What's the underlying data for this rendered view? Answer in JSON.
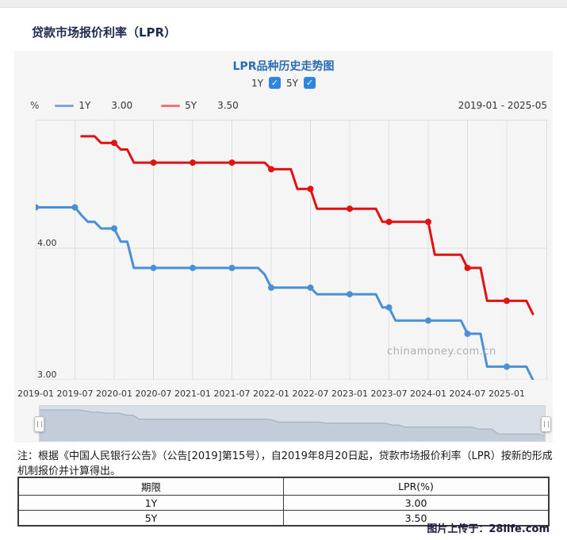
{
  "header": {
    "title": "贷款市场报价利率（LPR）"
  },
  "panel": {
    "chart_title": "LPR品种历史走势图",
    "checkboxes": [
      {
        "label": "1Y",
        "checked": true,
        "check_glyph": "✓"
      },
      {
        "label": "5Y",
        "checked": true,
        "check_glyph": "✓"
      }
    ],
    "legend": {
      "unit": "%",
      "items": [
        {
          "label": "1Y",
          "value": "3.00",
          "swatch_color": "#7ba7dc"
        },
        {
          "label": "5Y",
          "value": "3.50",
          "swatch_color": "#e57777"
        }
      ],
      "range": "2019-01 - 2025-05"
    },
    "y_ticks": [
      "4.00",
      "3.00"
    ],
    "watermark": "chinamoney.com.cn"
  },
  "chart_data": {
    "type": "line",
    "title": "LPR品种历史走势图",
    "xlabel": "",
    "ylabel": "%",
    "x_start": "2019-01",
    "x_end": "2025-05",
    "months": 77,
    "tick_labels": [
      "2019-01",
      "2019-07",
      "2020-01",
      "2020-07",
      "2021-01",
      "2021-07",
      "2022-01",
      "2022-07",
      "2023-01",
      "2023-07",
      "2024-01",
      "2024-07",
      "2025-01"
    ],
    "tick_month_interval": 6,
    "ylim": [
      2.93,
      4.97
    ],
    "gridline_values": [
      4.0,
      3.0
    ],
    "grid": true,
    "legend_position": "top-left",
    "series": [
      {
        "name": "1Y",
        "color": "#4a90d8",
        "latest": 3.0,
        "monthly_values": [
          4.31,
          4.31,
          4.31,
          4.31,
          4.31,
          4.31,
          4.31,
          4.25,
          4.2,
          4.2,
          4.15,
          4.15,
          4.15,
          4.05,
          4.05,
          3.85,
          3.85,
          3.85,
          3.85,
          3.85,
          3.85,
          3.85,
          3.85,
          3.85,
          3.85,
          3.85,
          3.85,
          3.85,
          3.85,
          3.85,
          3.85,
          3.85,
          3.85,
          3.85,
          3.85,
          3.8,
          3.7,
          3.7,
          3.7,
          3.7,
          3.7,
          3.7,
          3.7,
          3.65,
          3.65,
          3.65,
          3.65,
          3.65,
          3.65,
          3.65,
          3.65,
          3.65,
          3.65,
          3.55,
          3.55,
          3.45,
          3.45,
          3.45,
          3.45,
          3.45,
          3.45,
          3.45,
          3.45,
          3.45,
          3.45,
          3.45,
          3.35,
          3.35,
          3.35,
          3.1,
          3.1,
          3.1,
          3.1,
          3.1,
          3.1,
          3.1,
          3.0
        ]
      },
      {
        "name": "5Y",
        "color": "#e01212",
        "latest": 3.5,
        "monthly_values": [
          null,
          null,
          null,
          null,
          null,
          null,
          null,
          4.85,
          4.85,
          4.85,
          4.8,
          4.8,
          4.8,
          4.75,
          4.75,
          4.65,
          4.65,
          4.65,
          4.65,
          4.65,
          4.65,
          4.65,
          4.65,
          4.65,
          4.65,
          4.65,
          4.65,
          4.65,
          4.65,
          4.65,
          4.65,
          4.65,
          4.65,
          4.65,
          4.65,
          4.65,
          4.6,
          4.6,
          4.6,
          4.6,
          4.45,
          4.45,
          4.45,
          4.3,
          4.3,
          4.3,
          4.3,
          4.3,
          4.3,
          4.3,
          4.3,
          4.3,
          4.3,
          4.2,
          4.2,
          4.2,
          4.2,
          4.2,
          4.2,
          4.2,
          4.2,
          3.95,
          3.95,
          3.95,
          3.95,
          3.95,
          3.85,
          3.85,
          3.85,
          3.6,
          3.6,
          3.6,
          3.6,
          3.6,
          3.6,
          3.6,
          3.5
        ]
      }
    ]
  },
  "footnote": "注：根据《中国人民银行公告》（公告[2019]第15号），自2019年8月20日起，贷款市场报价利率（LPR）按新的形成机制报价并计算得出。",
  "table": {
    "headers": [
      "期限",
      "LPR(%)"
    ],
    "rows": [
      [
        "1Y",
        "3.00"
      ],
      [
        "5Y",
        "3.50"
      ]
    ]
  },
  "credit": "图片上传于：28life.com"
}
